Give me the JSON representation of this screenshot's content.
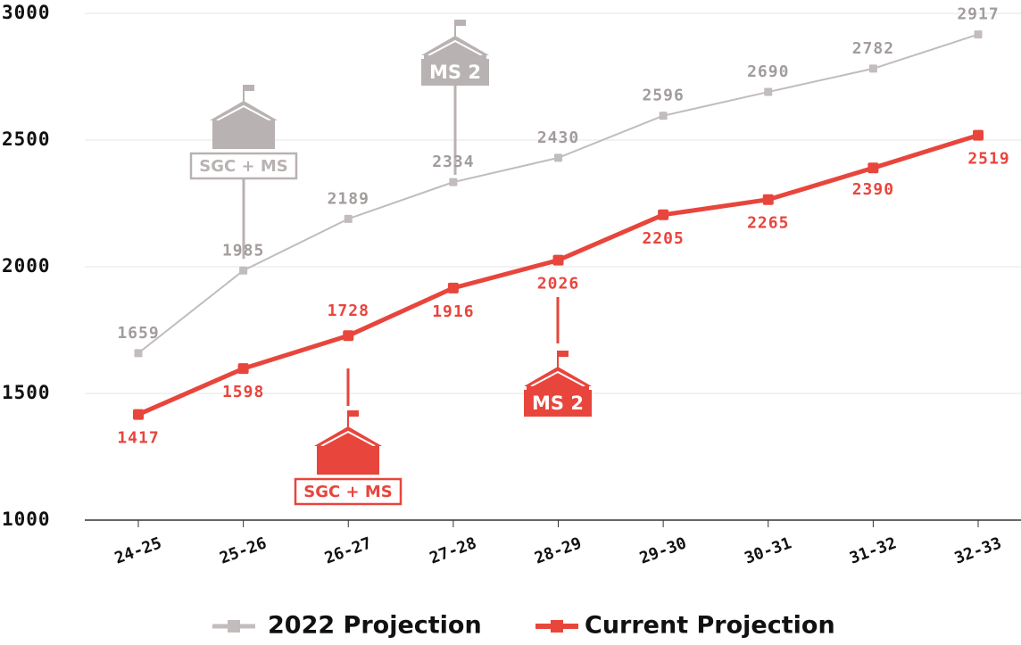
{
  "chart_data": {
    "type": "line",
    "categories": [
      "24-25",
      "25-26",
      "26-27",
      "27-28",
      "28-29",
      "29-30",
      "30-31",
      "31-32",
      "32-33"
    ],
    "series": [
      {
        "name": "2022 Projection",
        "color": "#c2bcbc",
        "values": [
          1659,
          1985,
          2189,
          2334,
          2430,
          2596,
          2690,
          2782,
          2917
        ]
      },
      {
        "name": "Current Projection",
        "color": "#e8453c",
        "values": [
          1417,
          1598,
          1728,
          1916,
          2026,
          2205,
          2265,
          2390,
          2519
        ]
      }
    ],
    "ylim": [
      1000,
      3000
    ],
    "yticks": [
      1000,
      1500,
      2000,
      2500,
      3000
    ],
    "grid": true,
    "annotations": [
      "SGC + MS",
      "MS 2",
      "SGC + MS",
      "MS 2"
    ]
  }
}
